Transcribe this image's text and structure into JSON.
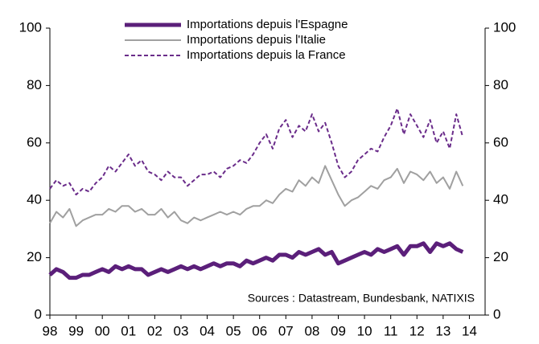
{
  "chart_data": {
    "type": "line",
    "annotation": "Sources : Datastream, Bundesbank, NATIXIS",
    "x": [
      1998,
      1998.25,
      1998.5,
      1998.75,
      1999,
      1999.25,
      1999.5,
      1999.75,
      2000,
      2000.25,
      2000.5,
      2000.75,
      2001,
      2001.25,
      2001.5,
      2001.75,
      2002,
      2002.25,
      2002.5,
      2002.75,
      2003,
      2003.25,
      2003.5,
      2003.75,
      2004,
      2004.25,
      2004.5,
      2004.75,
      2005,
      2005.25,
      2005.5,
      2005.75,
      2006,
      2006.25,
      2006.5,
      2006.75,
      2007,
      2007.25,
      2007.5,
      2007.75,
      2008,
      2008.25,
      2008.5,
      2008.75,
      2009,
      2009.25,
      2009.5,
      2009.75,
      2010,
      2010.25,
      2010.5,
      2010.75,
      2011,
      2011.25,
      2011.5,
      2011.75,
      2012,
      2012.25,
      2012.5,
      2012.75,
      2013,
      2013.25,
      2013.5,
      2013.75
    ],
    "series": [
      {
        "name": "Importations depuis l'Espagne",
        "color": "#5b1f7a",
        "width": 5,
        "dash": "none",
        "values": [
          14,
          16,
          15,
          13,
          13,
          14,
          14,
          15,
          16,
          15,
          17,
          16,
          17,
          16,
          16,
          14,
          15,
          16,
          15,
          16,
          17,
          16,
          17,
          16,
          17,
          18,
          17,
          18,
          18,
          17,
          19,
          18,
          19,
          20,
          19,
          21,
          21,
          20,
          22,
          21,
          22,
          23,
          21,
          22,
          18,
          19,
          20,
          21,
          22,
          21,
          23,
          22,
          23,
          24,
          21,
          24,
          24,
          25,
          22,
          25,
          24,
          25,
          23,
          22
        ]
      },
      {
        "name": "Importations depuis l'Italie",
        "color": "#a0a0a0",
        "width": 2,
        "dash": "none",
        "values": [
          32,
          36,
          34,
          37,
          31,
          33,
          34,
          35,
          35,
          37,
          36,
          38,
          38,
          36,
          37,
          35,
          35,
          37,
          34,
          36,
          33,
          32,
          34,
          33,
          34,
          35,
          36,
          35,
          36,
          35,
          37,
          38,
          38,
          40,
          39,
          42,
          44,
          43,
          47,
          45,
          48,
          46,
          52,
          47,
          42,
          38,
          40,
          41,
          43,
          45,
          44,
          47,
          48,
          51,
          46,
          50,
          49,
          47,
          50,
          46,
          48,
          44,
          50,
          45
        ]
      },
      {
        "name": "Importations depuis la France",
        "color": "#6a2c8a",
        "width": 2,
        "dash": "5 3",
        "values": [
          44,
          47,
          45,
          46,
          42,
          44,
          43,
          46,
          48,
          52,
          50,
          53,
          56,
          52,
          54,
          50,
          49,
          47,
          50,
          48,
          48,
          45,
          47,
          49,
          49,
          50,
          48,
          51,
          52,
          54,
          53,
          56,
          60,
          63,
          58,
          65,
          68,
          62,
          66,
          64,
          70,
          64,
          67,
          60,
          52,
          48,
          50,
          54,
          56,
          58,
          57,
          62,
          66,
          72,
          63,
          70,
          66,
          62,
          68,
          60,
          64,
          58,
          70,
          62
        ]
      }
    ],
    "xlim": [
      1998,
      2014.6
    ],
    "xticks": [
      {
        "value": 1998,
        "label": "98"
      },
      {
        "value": 1999,
        "label": "99"
      },
      {
        "value": 2000,
        "label": "00"
      },
      {
        "value": 2001,
        "label": "01"
      },
      {
        "value": 2002,
        "label": "02"
      },
      {
        "value": 2003,
        "label": "03"
      },
      {
        "value": 2004,
        "label": "04"
      },
      {
        "value": 2005,
        "label": "05"
      },
      {
        "value": 2006,
        "label": "06"
      },
      {
        "value": 2007,
        "label": "07"
      },
      {
        "value": 2008,
        "label": "08"
      },
      {
        "value": 2009,
        "label": "09"
      },
      {
        "value": 2010,
        "label": "10"
      },
      {
        "value": 2011,
        "label": "11"
      },
      {
        "value": 2012,
        "label": "12"
      },
      {
        "value": 2013,
        "label": "13"
      },
      {
        "value": 2014,
        "label": "14"
      }
    ],
    "ylim": [
      0,
      100
    ],
    "yticks": [
      0,
      20,
      40,
      60,
      80,
      100
    ],
    "y2lim": [
      0,
      100
    ],
    "y2ticks": [
      0,
      20,
      40,
      60,
      80,
      100
    ]
  }
}
